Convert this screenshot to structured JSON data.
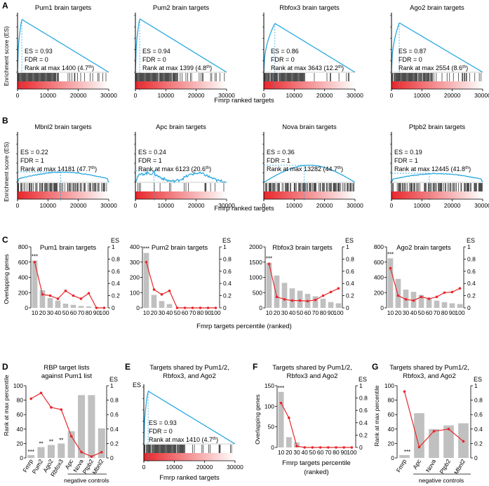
{
  "colors": {
    "es_line": "#29a8e0",
    "red": "#e8262b",
    "bar": "#c0c0c0",
    "black": "#000000"
  },
  "shared": {
    "ylabel_es": "Enrichment score (ES)",
    "xlabel_ranked": "Fmrp ranked targets",
    "xlabel_percentile": "Fmrp targets percentile (ranked)",
    "xlabel_percentile_l1": "Fmrp targets percentile",
    "xlabel_percentile_l2": "(ranked)",
    "ylabel_overlap": "Overlapping genes",
    "ylabel_rank": "Rank at max percentile",
    "es_label": "ES",
    "negative_controls": "negative controls",
    "xticks_rank": [
      "0",
      "10000",
      "20000",
      "30000"
    ],
    "pct_ticks": [
      "10",
      "20",
      "30",
      "40",
      "50",
      "60",
      "70",
      "80",
      "90",
      "100"
    ]
  },
  "panels": {
    "A": {
      "letter": "A",
      "plots": [
        {
          "title": "Pum1 brain targets",
          "es": "ES = 0.93",
          "fdr": "FDR = 0",
          "rank_text": "Rank at max 1400 (4.7",
          "sup": "th",
          "chart_data": {
            "type": "line",
            "peak_x": 1400,
            "peak_es": 0.93,
            "xlim": [
              0,
              30000
            ],
            "ylim": [
              0,
              1
            ],
            "shape": "positive"
          }
        },
        {
          "title": "Pum2 brain targets",
          "es": "ES = 0.94",
          "fdr": "FDR = 0",
          "rank_text": "Rank at max 1399 (4.8",
          "sup": "th",
          "chart_data": {
            "type": "line",
            "peak_x": 1399,
            "peak_es": 0.94,
            "xlim": [
              0,
              30000
            ],
            "ylim": [
              0,
              1
            ],
            "shape": "positive"
          }
        },
        {
          "title": "Rbfox3 brain targets",
          "es": "ES = 0.86",
          "fdr": "FDR = 0",
          "rank_text": "Rank at max 3643 (12.2",
          "sup": "th",
          "chart_data": {
            "type": "line",
            "peak_x": 3643,
            "peak_es": 0.86,
            "xlim": [
              0,
              30000
            ],
            "ylim": [
              0,
              1
            ],
            "shape": "positive"
          }
        },
        {
          "title": "Ago2 brain targets",
          "es": "ES = 0.87",
          "fdr": "FDR = 0",
          "rank_text": "Rank at max 2554 (8.6",
          "sup": "th",
          "chart_data": {
            "type": "line",
            "peak_x": 2554,
            "peak_es": 0.87,
            "xlim": [
              0,
              30000
            ],
            "ylim": [
              0,
              1
            ],
            "shape": "positive"
          }
        }
      ]
    },
    "B": {
      "letter": "B",
      "plots": [
        {
          "title": "Mbnl2 brain targets",
          "es": "ES = 0.22",
          "fdr": "FDR = 1",
          "rank_text": "Rank at max 14181 (47.7",
          "sup": "th",
          "chart_data": {
            "type": "line",
            "peak_x": 14181,
            "peak_es": 0.22,
            "xlim": [
              0,
              30000
            ],
            "ylim": [
              0,
              1
            ],
            "shape": "flat"
          }
        },
        {
          "title": "Apc brain targets",
          "es": "ES = 0.24",
          "fdr": "FDR = 1",
          "rank_text": "Rank at max 6123 (20.6",
          "sup": "th",
          "chart_data": {
            "type": "line",
            "peak_x": 6123,
            "peak_es": 0.24,
            "xlim": [
              0,
              30000
            ],
            "ylim": [
              0,
              1
            ],
            "shape": "noisy"
          }
        },
        {
          "title": "Nova brain targets",
          "es": "ES = 0.36",
          "fdr": "FDR = 1",
          "rank_text": "Rank at max 13282 (44.7",
          "sup": "th",
          "chart_data": {
            "type": "line",
            "peak_x": 13282,
            "peak_es": 0.36,
            "xlim": [
              0,
              30000
            ],
            "ylim": [
              0,
              1
            ],
            "shape": "arch"
          }
        },
        {
          "title": "Ptpb2 brain targets",
          "es": "ES = 0.19",
          "fdr": "FDR = 1",
          "rank_text": "Rank at max 12445 (41.8",
          "sup": "th",
          "chart_data": {
            "type": "line",
            "peak_x": 12445,
            "peak_es": 0.19,
            "xlim": [
              0,
              30000
            ],
            "ylim": [
              0,
              1
            ],
            "shape": "flat"
          }
        }
      ]
    },
    "C": {
      "letter": "C",
      "plots": [
        {
          "title": "Pum1 brain targets",
          "sig": "***",
          "yticks": [
            "0",
            "200",
            "400",
            "600",
            "800"
          ],
          "chart_data": {
            "type": "bar",
            "categories": [
              "10",
              "20",
              "30",
              "40",
              "50",
              "60",
              "70",
              "80",
              "90",
              "100"
            ],
            "ylim": [
              0,
              800
            ],
            "values": [
              620,
              230,
              130,
              95,
              55,
              40,
              25,
              18,
              8,
              5
            ],
            "es_values": [
              0.75,
              0.22,
              0.2,
              0.15,
              0.28,
              0.2,
              0.15,
              0.24,
              0,
              0
            ],
            "es_ylim": [
              0,
              1
            ]
          }
        },
        {
          "title": "Pum2 brain targets",
          "sig": "***",
          "yticks": [
            "0",
            "100",
            "200",
            "300",
            "400"
          ],
          "chart_data": {
            "type": "bar",
            "categories": [
              "10",
              "20",
              "30",
              "40",
              "50",
              "60",
              "70",
              "80",
              "90",
              "100"
            ],
            "ylim": [
              0,
              400
            ],
            "values": [
              360,
              85,
              45,
              25,
              0,
              0,
              0,
              0,
              0,
              0
            ],
            "es_values": [
              0.75,
              0.3,
              0.22,
              0.28,
              0,
              0,
              0,
              0,
              0,
              0
            ],
            "es_ylim": [
              0,
              1
            ]
          }
        },
        {
          "title": "Rbfox3 brain targets",
          "sig": "***",
          "yticks": [
            "0",
            "500",
            "1000",
            "1500",
            "2000"
          ],
          "chart_data": {
            "type": "bar",
            "categories": [
              "10",
              "20",
              "30",
              "40",
              "50",
              "60",
              "70",
              "80",
              "90",
              "100"
            ],
            "ylim": [
              0,
              2000
            ],
            "values": [
              1480,
              1060,
              820,
              640,
              560,
              460,
              380,
              300,
              190,
              150
            ],
            "es_values": [
              0.72,
              0.18,
              0.14,
              0.12,
              0.12,
              0.11,
              0.13,
              0.2,
              0.26,
              0.32
            ],
            "es_ylim": [
              0,
              1
            ]
          }
        },
        {
          "title": "Ago2 brain targets",
          "sig": "***",
          "yticks": [
            "0",
            "200",
            "400",
            "600",
            "800"
          ],
          "chart_data": {
            "type": "bar",
            "categories": [
              "10",
              "20",
              "30",
              "40",
              "50",
              "60",
              "70",
              "80",
              "90",
              "100"
            ],
            "ylim": [
              0,
              800
            ],
            "values": [
              650,
              380,
              240,
              210,
              170,
              130,
              95,
              75,
              60,
              50
            ],
            "es_values": [
              0.65,
              0.2,
              0.14,
              0.12,
              0.18,
              0.15,
              0.18,
              0.25,
              0.26,
              0.32
            ],
            "es_ylim": [
              0,
              1
            ]
          }
        }
      ]
    },
    "D": {
      "letter": "D",
      "title_l1": "RBP target lists",
      "title_l2": "against Pum1 list",
      "yticks": [
        "0",
        "20",
        "40",
        "60",
        "80",
        "100"
      ],
      "sigs": [
        "***",
        "**",
        "**",
        "**"
      ],
      "chart_data": {
        "type": "bar",
        "categories": [
          "Fmrp",
          "Pum2",
          "Ago2",
          "Rbfox3",
          "Apc",
          "Nova",
          "Ptpb2",
          "Mbnl2"
        ],
        "ylim": [
          0,
          100
        ],
        "values": [
          4,
          15,
          18,
          20,
          37,
          87,
          87,
          41
        ],
        "es_values": [
          0.82,
          0.9,
          0.7,
          0.67,
          0.3,
          0.08,
          0.02,
          0.08
        ],
        "es_ylim": [
          0,
          1
        ]
      }
    },
    "E": {
      "letter": "E",
      "title_l1": "Targets shared by Pum1/2,",
      "title_l2": "Rbfox3, and Ago2",
      "es": "ES = 0.93",
      "fdr": "FDR = 0",
      "rank_text": "Rank at max 1410 (4.7",
      "sup": "th",
      "chart_data": {
        "type": "line",
        "peak_x": 1410,
        "peak_es": 0.93,
        "xlim": [
          0,
          30000
        ],
        "ylim": [
          0,
          1
        ],
        "shape": "positive"
      }
    },
    "F": {
      "letter": "F",
      "title_l1": "Targets shared by Pum1/2,",
      "title_l2": "Rbfox3 and Ago2",
      "sig": "***",
      "yticks": [
        "0",
        "50",
        "100",
        "150"
      ],
      "chart_data": {
        "type": "bar",
        "categories": [
          "10",
          "20",
          "30",
          "40",
          "50",
          "60",
          "70",
          "80",
          "90",
          "100"
        ],
        "ylim": [
          0,
          150
        ],
        "values": [
          135,
          25,
          12,
          0,
          0,
          0,
          0,
          0,
          0,
          0
        ],
        "es_values": [
          0.72,
          0.48,
          0.02,
          0,
          0,
          0,
          0,
          0,
          0,
          0
        ],
        "es_ylim": [
          0,
          1
        ]
      }
    },
    "G": {
      "letter": "G",
      "title_l1": "Targets shared by Pum1/2,",
      "title_l2": "Rbfox3, and Ago2",
      "sig": "***",
      "yticks": [
        "0",
        "20",
        "40",
        "60",
        "80",
        "100"
      ],
      "chart_data": {
        "type": "bar",
        "categories": [
          "Fmrp",
          "Apc",
          "Nova",
          "Ptpb2",
          "Mbnl2"
        ],
        "ylim": [
          0,
          100
        ],
        "values": [
          4,
          62,
          40,
          45,
          48
        ],
        "es_values": [
          0.92,
          0.15,
          0.37,
          0.4,
          0.23
        ],
        "es_ylim": [
          0,
          1
        ]
      }
    }
  }
}
